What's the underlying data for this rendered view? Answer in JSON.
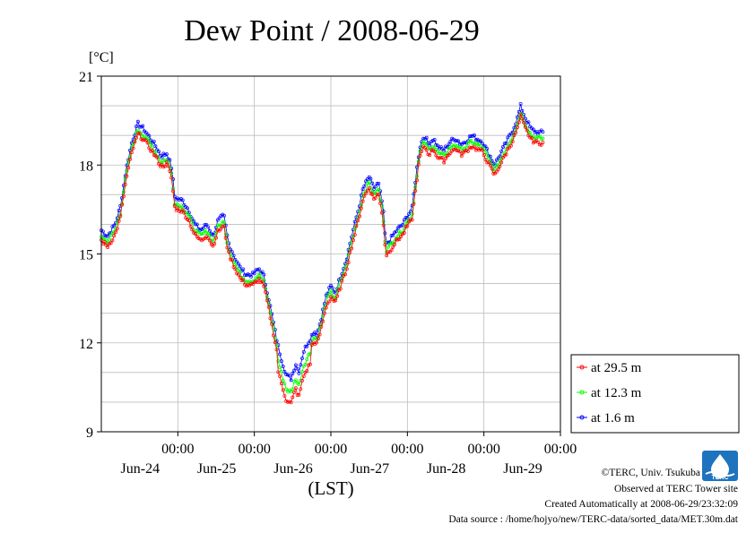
{
  "chart_data": {
    "type": "line",
    "title": "Dew Point / 2008-06-29",
    "ylabel": "[°C]",
    "xlabel": "(LST)",
    "ylim": [
      9,
      21
    ],
    "xlim": [
      0,
      6
    ],
    "yticks": [
      9,
      12,
      15,
      18,
      21
    ],
    "x_unit_note": "x values are days elapsed from the left plot edge (2008-06-23 ~14:00 LST)",
    "xticks": [
      {
        "x": 1,
        "time": "00:00",
        "date": "Jun-24"
      },
      {
        "x": 2,
        "time": "00:00",
        "date": "Jun-25"
      },
      {
        "x": 3,
        "time": "00:00",
        "date": "Jun-26"
      },
      {
        "x": 4,
        "time": "00:00",
        "date": "Jun-27"
      },
      {
        "x": 5,
        "time": "00:00",
        "date": "Jun-28"
      },
      {
        "x": 6,
        "time": "00:00",
        "date": "Jun-29"
      }
    ],
    "grid": true,
    "legend_position": "right-bottom",
    "series": [
      {
        "name": "at 29.5 m",
        "color": "#ff0000",
        "offset": -0.35,
        "jitter": 0.07
      },
      {
        "name": "at 12.3 m",
        "color": "#00ff00",
        "offset": -0.2,
        "jitter": 0.08
      },
      {
        "name": "at 1.6 m",
        "color": "#0000ff",
        "offset": 0.0,
        "jitter": 0.08
      }
    ],
    "base_curve": [
      [
        0.0,
        15.8
      ],
      [
        0.08,
        15.6
      ],
      [
        0.18,
        16.0
      ],
      [
        0.25,
        16.6
      ],
      [
        0.32,
        17.8
      ],
      [
        0.4,
        18.8
      ],
      [
        0.48,
        19.4
      ],
      [
        0.56,
        19.2
      ],
      [
        0.64,
        18.9
      ],
      [
        0.72,
        18.6
      ],
      [
        0.78,
        18.3
      ],
      [
        0.86,
        18.4
      ],
      [
        0.92,
        17.9
      ],
      [
        0.96,
        16.9
      ],
      [
        1.06,
        16.8
      ],
      [
        1.14,
        16.5
      ],
      [
        1.22,
        16.0
      ],
      [
        1.3,
        15.8
      ],
      [
        1.38,
        16.0
      ],
      [
        1.46,
        15.6
      ],
      [
        1.52,
        16.1
      ],
      [
        1.6,
        16.3
      ],
      [
        1.66,
        15.4
      ],
      [
        1.74,
        14.9
      ],
      [
        1.82,
        14.5
      ],
      [
        1.9,
        14.3
      ],
      [
        1.98,
        14.3
      ],
      [
        2.06,
        14.5
      ],
      [
        2.12,
        14.3
      ],
      [
        2.18,
        13.6
      ],
      [
        2.24,
        12.8
      ],
      [
        2.3,
        12.0
      ],
      [
        2.36,
        11.4
      ],
      [
        2.42,
        10.9
      ],
      [
        2.48,
        10.8
      ],
      [
        2.54,
        11.3
      ],
      [
        2.58,
        11.0
      ],
      [
        2.64,
        11.7
      ],
      [
        2.72,
        12.1
      ],
      [
        2.78,
        12.4
      ],
      [
        2.82,
        12.3
      ],
      [
        2.88,
        12.9
      ],
      [
        2.94,
        13.6
      ],
      [
        3.0,
        13.9
      ],
      [
        3.06,
        13.7
      ],
      [
        3.12,
        14.2
      ],
      [
        3.2,
        14.8
      ],
      [
        3.28,
        15.7
      ],
      [
        3.36,
        16.5
      ],
      [
        3.42,
        17.2
      ],
      [
        3.5,
        17.6
      ],
      [
        3.56,
        17.2
      ],
      [
        3.62,
        17.4
      ],
      [
        3.68,
        16.6
      ],
      [
        3.72,
        15.3
      ],
      [
        3.78,
        15.5
      ],
      [
        3.86,
        15.8
      ],
      [
        3.94,
        16.0
      ],
      [
        4.0,
        16.3
      ],
      [
        4.06,
        16.5
      ],
      [
        4.12,
        17.8
      ],
      [
        4.16,
        18.6
      ],
      [
        4.22,
        19.0
      ],
      [
        4.28,
        18.7
      ],
      [
        4.34,
        18.9
      ],
      [
        4.4,
        18.6
      ],
      [
        4.48,
        18.5
      ],
      [
        4.56,
        18.8
      ],
      [
        4.64,
        18.9
      ],
      [
        4.7,
        18.7
      ],
      [
        4.76,
        18.8
      ],
      [
        4.84,
        19.0
      ],
      [
        4.9,
        18.9
      ],
      [
        4.98,
        18.8
      ],
      [
        5.06,
        18.4
      ],
      [
        5.14,
        18.0
      ],
      [
        5.22,
        18.4
      ],
      [
        5.3,
        18.8
      ],
      [
        5.38,
        19.2
      ],
      [
        5.44,
        19.6
      ],
      [
        5.48,
        20.0
      ],
      [
        5.54,
        19.6
      ],
      [
        5.62,
        19.2
      ],
      [
        5.7,
        19.1
      ],
      [
        5.78,
        19.1
      ]
    ],
    "x_end": 5.78
  },
  "credits": {
    "copyright": "©TERC, Univ. Tsukuba",
    "observed": "Observed at TERC Tower site",
    "created": "Created Automatically at 2008-06-29/23:32:09",
    "source": "Data source : /home/hojyo/new/TERC-data/sorted_data/MET.30m.dat"
  },
  "logo": {
    "text": "TERC",
    "color": "#1e73be"
  }
}
